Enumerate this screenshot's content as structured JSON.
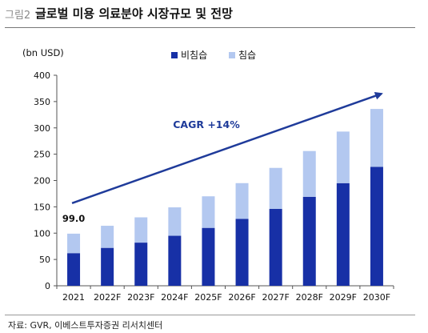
{
  "figure": {
    "label": "그림2",
    "title": "글로벌 미용 의료분야 시장규모 및 전망",
    "source": "자료: GVR, 이베스트투자증권 리서치센터"
  },
  "chart_data": {
    "type": "bar",
    "stacked": true,
    "unit_label": "(bn USD)",
    "categories": [
      "2021",
      "2022F",
      "2023F",
      "2024F",
      "2025F",
      "2026F",
      "2027F",
      "2028F",
      "2029F",
      "2030F"
    ],
    "series": [
      {
        "name": "비침습",
        "color": "#1730a6",
        "values": [
          62,
          72,
          82,
          95,
          110,
          127,
          146,
          169,
          195,
          226
        ]
      },
      {
        "name": "침습",
        "color": "#b3c8f0",
        "values": [
          37,
          42,
          48,
          54,
          60,
          68,
          78,
          87,
          98,
          110
        ]
      }
    ],
    "totals": [
      99,
      114,
      130,
      149,
      170,
      195,
      224,
      256,
      293,
      336
    ],
    "ylim": [
      0,
      400
    ],
    "yticks": [
      0,
      50,
      100,
      150,
      200,
      250,
      300,
      350,
      400
    ],
    "grid": false,
    "legend": "top-center",
    "annotations": [
      {
        "type": "data-label",
        "category": "2021",
        "text": "99.0"
      },
      {
        "type": "trend-arrow",
        "text": "CAGR +14%",
        "from_category": "2021",
        "from_value": 157,
        "to_category": "2030F",
        "to_value": 365
      }
    ]
  }
}
